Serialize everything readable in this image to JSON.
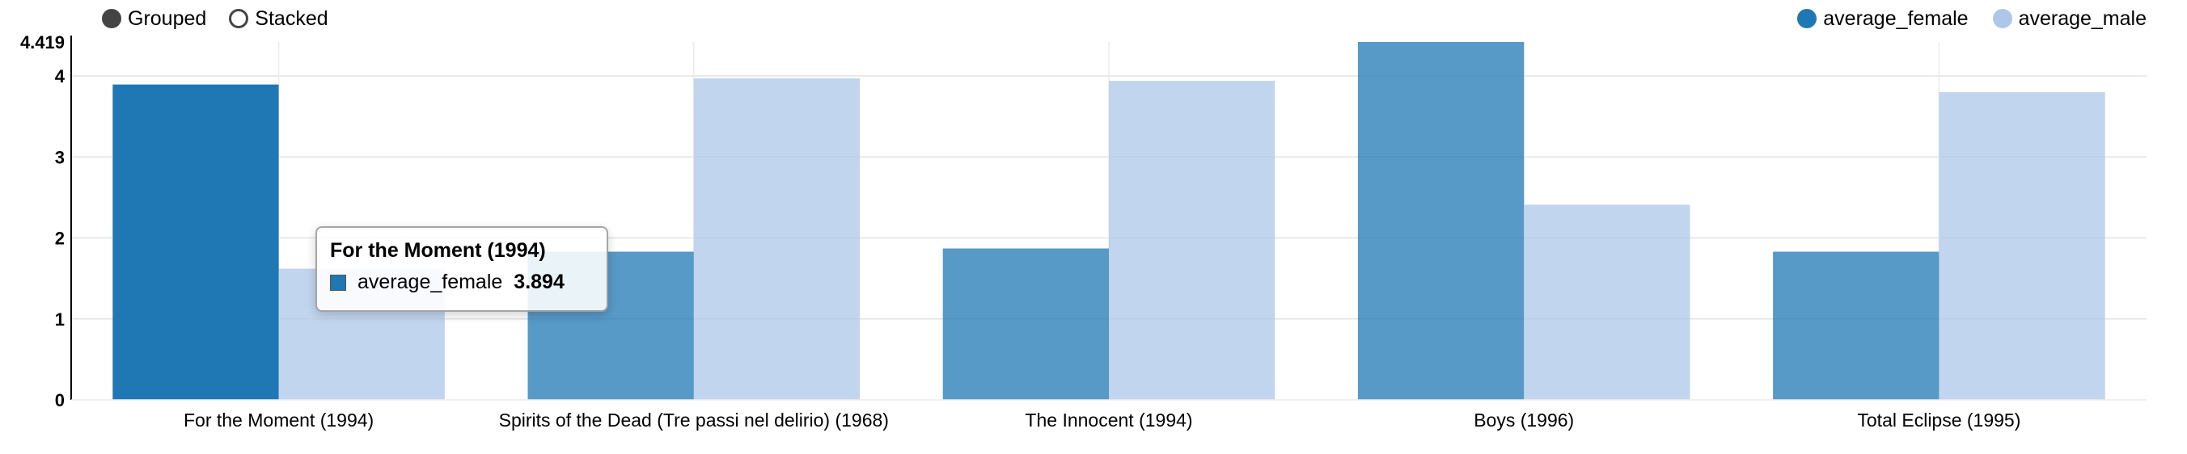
{
  "controls": {
    "grouped_label": "Grouped",
    "stacked_label": "Stacked",
    "selected": "grouped"
  },
  "legend": [
    {
      "label": "average_female",
      "color": "#1f77b4"
    },
    {
      "label": "average_male",
      "color": "#aec7e8"
    }
  ],
  "tooltip": {
    "title": "For the Moment (1994)",
    "series": "average_female",
    "value": "3.894",
    "color": "#1f77b4"
  },
  "chart_data": {
    "type": "bar",
    "mode": "grouped",
    "categories": [
      "For the Moment (1994)",
      "Spirits of the Dead (Tre passi nel delirio) (1968)",
      "The Innocent (1994)",
      "Boys (1996)",
      "Total Eclipse (1995)"
    ],
    "series": [
      {
        "name": "average_female",
        "color": "#1f77b4",
        "values": [
          3.894,
          1.83,
          1.87,
          4.419,
          1.83
        ]
      },
      {
        "name": "average_male",
        "color": "#aec7e8",
        "values": [
          1.62,
          3.97,
          3.94,
          2.41,
          3.8
        ]
      }
    ],
    "highlight": {
      "series": 0,
      "category": 0
    },
    "ylim": [
      0,
      4.419
    ],
    "y_ticks": [
      "0",
      "1",
      "2",
      "3",
      "4"
    ],
    "y_max_label": "4.419",
    "grid": true,
    "legend_position": "top-right"
  }
}
